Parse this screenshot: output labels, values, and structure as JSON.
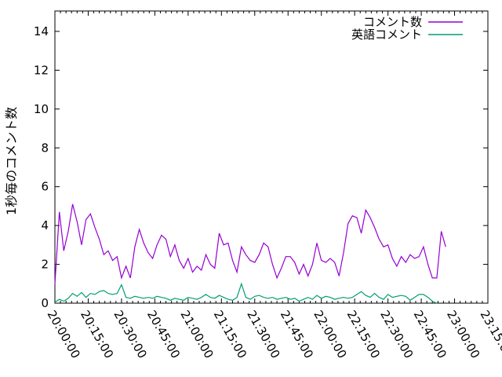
{
  "chart_data": {
    "type": "line",
    "title": "",
    "xlabel": "",
    "ylabel": "1秒毎のコメント数",
    "grid": false,
    "legend": {
      "position": "top-right-inside",
      "border": false
    },
    "x_axis": {
      "kind": "time",
      "start": "20:00:00",
      "end": "23:15:00",
      "tick_labels": [
        "20:00:00",
        "20:15:00",
        "20:30:00",
        "20:45:00",
        "21:00:00",
        "21:15:00",
        "21:30:00",
        "21:45:00",
        "22:00:00",
        "22:15:00",
        "22:30:00",
        "22:45:00",
        "23:00:00",
        "23:15:00"
      ],
      "major_tick_minutes": 15,
      "minor_tick_minutes": 2.5,
      "label_rotation_deg": 60,
      "total_minutes": 195
    },
    "y_axis": {
      "min": 0,
      "max": 15,
      "tick_interval": 2,
      "tick_labels": [
        "0",
        "2",
        "4",
        "6",
        "8",
        "10",
        "12",
        "14"
      ]
    },
    "series": [
      {
        "name": "コメント数",
        "color": "#9400d3",
        "start_minute": 0,
        "step_minutes": 2,
        "values": [
          1.0,
          4.7,
          2.7,
          3.7,
          5.1,
          4.2,
          3.0,
          4.3,
          4.6,
          3.9,
          3.3,
          2.5,
          2.7,
          2.2,
          2.4,
          1.3,
          1.9,
          1.3,
          2.9,
          3.8,
          3.1,
          2.6,
          2.3,
          3.0,
          3.5,
          3.3,
          2.4,
          3.0,
          2.2,
          1.8,
          2.3,
          1.6,
          1.9,
          1.7,
          2.5,
          2.0,
          1.8,
          3.6,
          3.0,
          3.1,
          2.2,
          1.6,
          2.9,
          2.5,
          2.2,
          2.1,
          2.5,
          3.1,
          2.9,
          2.0,
          1.3,
          1.8,
          2.4,
          2.4,
          2.1,
          1.5,
          2.0,
          1.4,
          2.0,
          3.1,
          2.2,
          2.1,
          2.3,
          2.1,
          1.4,
          2.6,
          4.1,
          4.5,
          4.4,
          3.6,
          4.8,
          4.4,
          3.9,
          3.3,
          2.9,
          3.0,
          2.3,
          1.9,
          2.4,
          2.1,
          2.5,
          2.3,
          2.4,
          2.9,
          2.0,
          1.3,
          1.3,
          3.7,
          2.9
        ]
      },
      {
        "name": "英語コメント",
        "color": "#009e73",
        "start_minute": 0,
        "step_minutes": 2,
        "values": [
          0.05,
          0.2,
          0.1,
          0.25,
          0.5,
          0.35,
          0.55,
          0.3,
          0.5,
          0.45,
          0.6,
          0.65,
          0.5,
          0.45,
          0.5,
          0.95,
          0.3,
          0.25,
          0.35,
          0.3,
          0.25,
          0.3,
          0.25,
          0.35,
          0.3,
          0.25,
          0.15,
          0.25,
          0.2,
          0.15,
          0.3,
          0.25,
          0.2,
          0.3,
          0.45,
          0.3,
          0.25,
          0.4,
          0.3,
          0.2,
          0.15,
          0.3,
          1.0,
          0.3,
          0.2,
          0.35,
          0.4,
          0.3,
          0.25,
          0.3,
          0.2,
          0.25,
          0.3,
          0.2,
          0.25,
          0.1,
          0.2,
          0.3,
          0.2,
          0.4,
          0.25,
          0.35,
          0.3,
          0.2,
          0.25,
          0.3,
          0.25,
          0.3,
          0.45,
          0.6,
          0.4,
          0.3,
          0.5,
          0.3,
          0.2,
          0.45,
          0.3,
          0.35,
          0.4,
          0.35,
          0.15,
          0.3,
          0.45,
          0.45,
          0.3,
          0.1,
          0.0
        ]
      }
    ]
  }
}
